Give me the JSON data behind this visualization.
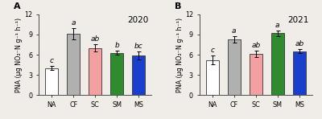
{
  "panel_A": {
    "title": "2020",
    "categories": [
      "NA",
      "CF",
      "SC",
      "SM",
      "MS"
    ],
    "values": [
      4.0,
      9.1,
      7.0,
      6.3,
      5.9
    ],
    "errors": [
      0.3,
      0.85,
      0.55,
      0.25,
      0.55
    ],
    "letters": [
      "c",
      "a",
      "ab",
      "b",
      "bc"
    ],
    "colors": [
      "#ffffff",
      "#b0b0b0",
      "#f4a0a0",
      "#2e8b2e",
      "#1a3fcc"
    ],
    "edgecolors": [
      "#333333",
      "#333333",
      "#333333",
      "#333333",
      "#333333"
    ]
  },
  "panel_B": {
    "title": "2021",
    "categories": [
      "NA",
      "CF",
      "SC",
      "SM",
      "MS"
    ],
    "values": [
      5.2,
      8.3,
      6.1,
      9.2,
      6.5
    ],
    "errors": [
      0.65,
      0.45,
      0.45,
      0.4,
      0.3
    ],
    "letters": [
      "c",
      "a",
      "ab",
      "a",
      "ab"
    ],
    "colors": [
      "#ffffff",
      "#b0b0b0",
      "#f4a0a0",
      "#2e8b2e",
      "#1a3fcc"
    ],
    "edgecolors": [
      "#333333",
      "#333333",
      "#333333",
      "#333333",
      "#333333"
    ]
  },
  "ylabel": "PNA (μg NO₂⁻N g⁻¹ h⁻¹)",
  "ylim": [
    0,
    12
  ],
  "yticks": [
    0,
    3,
    6,
    9,
    12
  ],
  "panel_labels": [
    "A",
    "B"
  ],
  "letter_fontsize": 6.5,
  "axis_fontsize": 5.8,
  "tick_fontsize": 5.8,
  "title_fontsize": 7.5,
  "bar_width": 0.58,
  "bg_color": "#f0ede8"
}
